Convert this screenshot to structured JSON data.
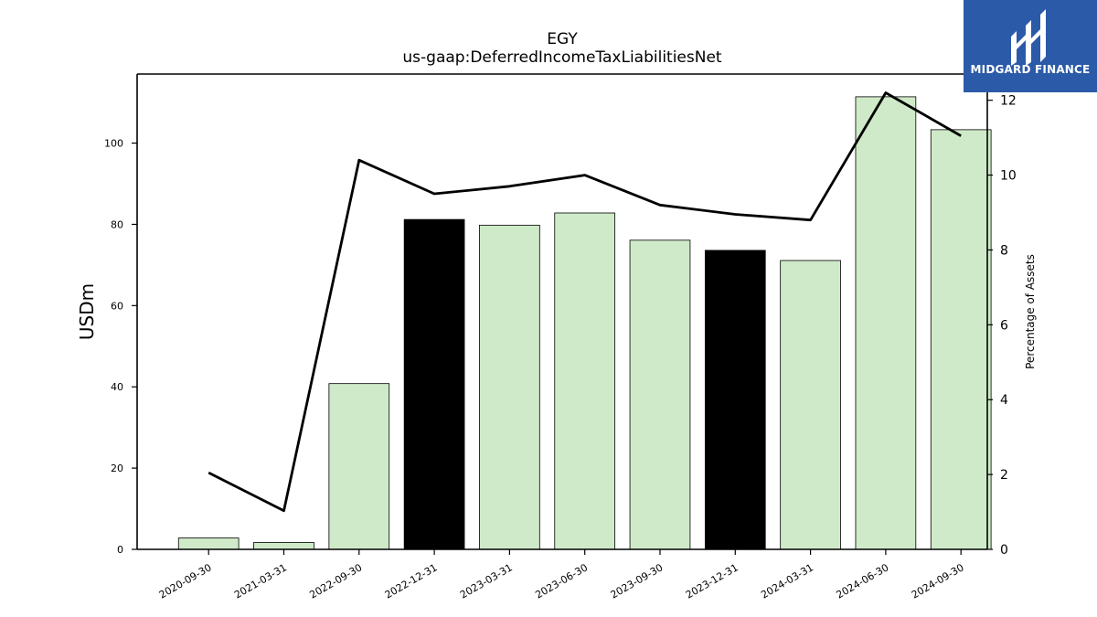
{
  "title": "EGY",
  "subtitle": "us-gaap:DeferredIncomeTaxLiabilitiesNet",
  "logo": {
    "text": "MIDGARD FINANCE",
    "color": "#2b5aa8"
  },
  "chart_data": {
    "type": "bar",
    "categories": [
      "2020-09-30",
      "2021-03-31",
      "2022-09-30",
      "2022-12-31",
      "2023-03-31",
      "2023-06-30",
      "2023-09-30",
      "2023-12-31",
      "2024-03-31",
      "2024-06-30",
      "2024-09-30"
    ],
    "values": [
      2.8,
      1.7,
      40.8,
      81.2,
      79.8,
      82.8,
      76.1,
      73.6,
      71.1,
      111.4,
      103.3
    ],
    "highlight": [
      false,
      false,
      false,
      true,
      false,
      false,
      false,
      true,
      false,
      false,
      false
    ],
    "bar_color": "#cfeac8",
    "highlight_color": "#000000",
    "ylabel": "USDm",
    "ylim": [
      0,
      117
    ],
    "yticks": [
      0,
      20,
      40,
      60,
      80,
      100
    ],
    "line": {
      "values": [
        2.05,
        1.03,
        10.4,
        9.5,
        9.7,
        10.0,
        9.2,
        8.95,
        8.8,
        12.2,
        11.05
      ],
      "color": "#000000"
    },
    "y2label": "Percentage of Assets",
    "y2lim": [
      0,
      12.7
    ],
    "y2ticks": [
      0,
      2,
      4,
      6,
      8,
      10,
      12
    ]
  }
}
